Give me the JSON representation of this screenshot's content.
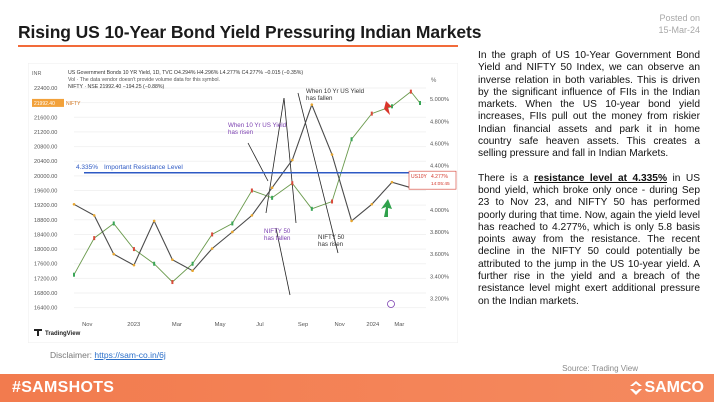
{
  "posted": {
    "label": "Posted on",
    "date": "15-Mar-24"
  },
  "title": "Rising US 10-Year Bond Yield Pressuring Indian Markets",
  "description": {
    "p1": "In the graph of US 10-Year Government Bond Yield and NIFTY 50 Index, we can observe an inverse relation in both variables. This is driven by the significant influence of FIIs in the Indian markets. When the US 10-year bond yield increases, FIIs pull out the money from riskier Indian financial assets and park it in home country safe heaven assets. This creates a selling pressure and fall in Indian Markets.",
    "p2_pre": "There is a ",
    "p2_highlight": "resistance level at 4.335%",
    "p2_post": " in US bond yield, which broke only once - during Sep 23 to Nov 23, and NIFTY 50 has performed poorly during that time. Now, again the yield level has reached to 4.277%, which is only 5.8 basis points away from the resistance. The recent decline in the NIFTY 50 could potentially be attributed to the jump in the US 10-year yield. A further rise in the yield and a breach of the resistance level might exert additional pressure on the Indian markets."
  },
  "disclaimer": {
    "label": "Disclaimer: ",
    "link": "https://sam-co.in/6j"
  },
  "source": "Source: Trading View",
  "footer": {
    "hashtag": "#SAMSHOTS",
    "brand": "SAMCO"
  },
  "chart_data": {
    "type": "line",
    "header_line1": "US Government Bonds 10 YR Yield, 1D, TVC  O4.294%  H4.296%  L4.277%  C4.277%  −0.015 (−0.35%)",
    "header_line2": "Vol · The data vendor doesn't provide volume data for this symbol.",
    "header_line3": "NIFTY · NSE  21992.40  −194.25 (−0.88%)",
    "inr_label": "INR",
    "pct_label": "%",
    "nifty_tag": {
      "value": "21992.40",
      "name": "NIFTY"
    },
    "yield_tag": {
      "name": "US10Y",
      "value": "4.277%",
      "time": "14:05:45"
    },
    "left_axis": {
      "ticks": [
        "22400.00",
        "22000.00",
        "21600.00",
        "21200.00",
        "20800.00",
        "20400.00",
        "20000.00",
        "19600.00",
        "19200.00",
        "18800.00",
        "18400.00",
        "18000.00",
        "17600.00",
        "17200.00",
        "16800.00",
        "16400.00"
      ],
      "range": [
        16200,
        22700
      ]
    },
    "right_axis": {
      "ticks": [
        "5.000%",
        "4.800%",
        "4.600%",
        "4.400%",
        "4.200%",
        "4.000%",
        "3.800%",
        "3.600%",
        "3.400%",
        "3.200%"
      ],
      "range": [
        3.05,
        5.2
      ]
    },
    "x_ticks": [
      "Nov",
      "2023",
      "Mar",
      "May",
      "Jul",
      "Sep",
      "Nov",
      "2024",
      "Mar"
    ],
    "resistance": {
      "value": 4.335,
      "label": "4.335%",
      "text": "Important Resistance Level"
    },
    "annotations": [
      {
        "lines": [
          "When 10 Yr US Yield",
          "has fallen"
        ],
        "color": "#333"
      },
      {
        "lines": [
          "When 10 Yr US Yield",
          "has risen"
        ],
        "color": "#7b3fb0"
      },
      {
        "lines": [
          "NIFTY 50",
          "has fallen"
        ],
        "color": "#7b3fb0"
      },
      {
        "lines": [
          "NIFTY 50",
          "has risen"
        ],
        "color": "#333"
      }
    ],
    "tv_logo": "TradingView",
    "series": [
      {
        "name": "NIFTY",
        "color": "#e8a62f",
        "x": [
          "2022-10-01",
          "2022-11-01",
          "2022-12-01",
          "2023-01-01",
          "2023-02-01",
          "2023-03-01",
          "2023-04-01",
          "2023-05-01",
          "2023-06-01",
          "2023-07-01",
          "2023-08-01",
          "2023-09-01",
          "2023-10-01",
          "2023-11-01",
          "2023-12-01",
          "2024-01-01",
          "2024-02-01",
          "2024-03-01",
          "2024-03-15"
        ],
        "values": [
          17300,
          18300,
          18700,
          18000,
          17600,
          17100,
          17600,
          18400,
          18700,
          19600,
          19400,
          19800,
          19100,
          19300,
          21000,
          21700,
          21900,
          22300,
          21990
        ]
      },
      {
        "name": "US10Y",
        "color": "#4a4a4a",
        "x": [
          "2022-10-01",
          "2022-11-01",
          "2022-12-01",
          "2023-01-01",
          "2023-02-01",
          "2023-03-01",
          "2023-04-01",
          "2023-05-01",
          "2023-06-01",
          "2023-07-01",
          "2023-08-01",
          "2023-09-01",
          "2023-10-01",
          "2023-11-01",
          "2023-12-01",
          "2024-01-01",
          "2024-02-01",
          "2024-03-01",
          "2024-03-15"
        ],
        "values": [
          4.05,
          3.95,
          3.6,
          3.5,
          3.9,
          3.55,
          3.45,
          3.65,
          3.8,
          3.95,
          4.2,
          4.45,
          4.95,
          4.5,
          3.9,
          4.05,
          4.25,
          4.2,
          4.277
        ]
      }
    ]
  }
}
